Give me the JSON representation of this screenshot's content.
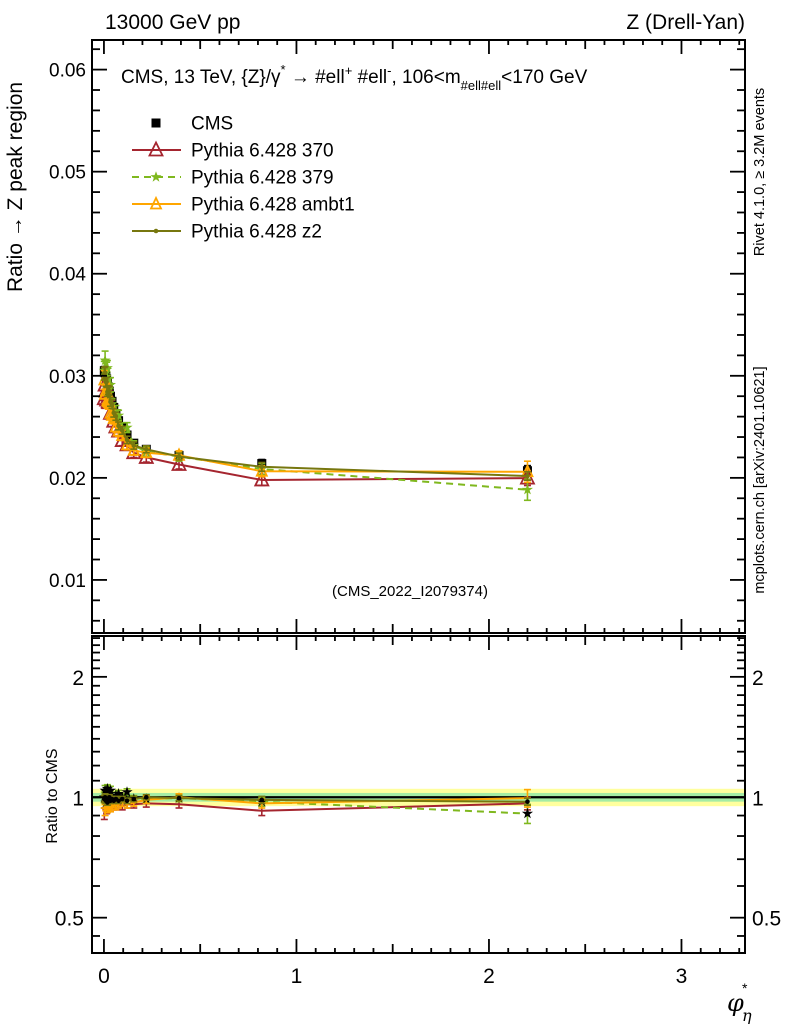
{
  "header": {
    "left": "13000 GeV pp",
    "right": "Z (Drell-Yan)"
  },
  "plot_title": {
    "p1": "CMS, 13 TeV, {Z}/γ",
    "sup1": "*",
    "p2": " → #ell",
    "sup2": "+",
    "p3": " #ell",
    "sup3": "-",
    "p4": ", 106<m",
    "sub1": "#ell#ell",
    "p5": "<170 GeV"
  },
  "side_notes": {
    "top": "Rivet 4.1.0, ≥ 3.2M events",
    "bottom": "mcplots.cern.ch [arXiv:2401.10621]"
  },
  "watermark": "(CMS_2022_I2079374)",
  "labels": {
    "y_main": "Ratio → Z peak region",
    "y_ratio": "Ratio to CMS",
    "x_phi": "φ",
    "x_sup": "*",
    "x_sub": "η"
  },
  "colors": {
    "frame": "#000000",
    "cms": "#000000",
    "py370": "#a5252f",
    "py379": "#7fb81e",
    "pyambt1": "#ffa600",
    "pyz2": "#77770f",
    "band_outer": "#ffff9e",
    "band_inner": "#a4eca4",
    "side_text": "#8e8e8e",
    "watermark": "#b4b4b4"
  },
  "legend": {
    "items": [
      {
        "id": "cms",
        "label": "CMS",
        "marker": "square",
        "color": "#000000",
        "line": "none"
      },
      {
        "id": "py370",
        "label": "Pythia 6.428 370",
        "marker": "triangle-open",
        "color": "#a5252f",
        "line": "solid"
      },
      {
        "id": "py379",
        "label": "Pythia 6.428 379",
        "marker": "star",
        "color": "#7fb81e",
        "line": "dashed"
      },
      {
        "id": "pyambt1",
        "label": "Pythia 6.428 ambt1",
        "marker": "triangle-open-small",
        "color": "#ffa600",
        "line": "solid"
      },
      {
        "id": "pyz2",
        "label": "Pythia 6.428 z2",
        "marker": "dot",
        "color": "#77770f",
        "line": "solid"
      }
    ]
  },
  "chart_data": [
    {
      "type": "line",
      "panel": "main",
      "title": "CMS, 13 TeV, {Z}/γ* → ell+ ell-, 106<m_ellell<170 GeV",
      "xlabel": "phi*_eta",
      "ylabel": "Ratio → Z peak region",
      "xlim": [
        -0.062,
        3.33
      ],
      "ylim": [
        0.0048,
        0.0629
      ],
      "grid": false,
      "x": [
        0.002,
        0.006,
        0.01,
        0.014,
        0.018,
        0.023,
        0.028,
        0.034,
        0.042,
        0.051,
        0.062,
        0.076,
        0.095,
        0.12,
        0.155,
        0.22,
        0.39,
        0.82,
        2.2
      ],
      "yticks": {
        "major": [
          0.01,
          0.02,
          0.03,
          0.04,
          0.05,
          0.06
        ],
        "labels": [
          "0.01",
          "0.02",
          "0.03",
          "0.04",
          "0.05",
          "0.06"
        ],
        "minor_step": 0.002
      },
      "xticks": {
        "major": [
          0,
          1,
          2,
          3
        ],
        "labels": [
          "0",
          "1",
          "2",
          "3"
        ],
        "medium_step": 0.5,
        "minor_step": 0.1
      },
      "series": [
        {
          "id": "cms",
          "label": "CMS",
          "marker": "square",
          "color": "#000000",
          "line": "none",
          "y": [
            0.0305,
            0.0303,
            0.03,
            0.0297,
            0.0293,
            0.0289,
            0.0285,
            0.028,
            0.0275,
            0.0269,
            0.0263,
            0.0256,
            0.0249,
            0.0242,
            0.0234,
            0.0228,
            0.0222,
            0.0214,
            0.0207
          ],
          "yerr": [
            0.0004,
            0.0003,
            0.0003,
            0.0003,
            0.0003,
            0.0003,
            0.0003,
            0.0003,
            0.0003,
            0.0003,
            0.0003,
            0.0003,
            0.0003,
            0.0003,
            0.0003,
            0.0003,
            0.0003,
            0.0004,
            0.0005
          ]
        }
      ],
      "note": "MC model values in this panel = ratio × CMS value, ratios listed in the ratio-panel chart below"
    },
    {
      "type": "line",
      "panel": "ratio",
      "ylabel": "Ratio to CMS",
      "ylog": true,
      "xlim": [
        -0.062,
        3.33
      ],
      "ylim": [
        0.408,
        2.53
      ],
      "grid": false,
      "yticks": {
        "major": [
          0.5,
          1,
          2
        ],
        "labels": [
          "0.5",
          "1",
          "2"
        ],
        "minor": [
          0.45,
          0.6,
          0.7,
          0.8,
          0.9,
          1.1,
          1.2,
          1.3,
          1.4,
          1.5,
          1.6,
          1.7,
          1.8,
          1.9,
          2.1,
          2.2,
          2.3,
          2.4,
          2.5
        ]
      },
      "reference_line": 1.0,
      "bands": {
        "outer": {
          "lo": 0.95,
          "hi": 1.05,
          "color": "#ffff9e"
        },
        "inner": {
          "lo": 0.975,
          "hi": 1.025,
          "color": "#a4eca4"
        }
      },
      "x": [
        0.002,
        0.006,
        0.01,
        0.014,
        0.018,
        0.023,
        0.028,
        0.034,
        0.042,
        0.051,
        0.062,
        0.076,
        0.095,
        0.12,
        0.155,
        0.22,
        0.39,
        0.82,
        2.2
      ],
      "series": [
        {
          "id": "py370",
          "label": "Pythia 6.428 370",
          "marker": "triangle-open",
          "color": "#a5252f",
          "line": "solid",
          "ratio": [
            0.91,
            0.96,
            0.95,
            0.93,
            0.96,
            0.95,
            0.96,
            0.94,
            0.96,
            0.95,
            0.95,
            0.96,
            0.95,
            0.96,
            0.96,
            0.965,
            0.96,
            0.925,
            0.965
          ],
          "err": [
            0.03,
            0.02,
            0.02,
            0.02,
            0.02,
            0.02,
            0.02,
            0.02,
            0.02,
            0.02,
            0.02,
            0.02,
            0.02,
            0.02,
            0.02,
            0.02,
            0.02,
            0.025,
            0.035
          ]
        },
        {
          "id": "py379",
          "label": "Pythia 6.428 379",
          "marker": "star",
          "color": "#7fb81e",
          "line": "dashed",
          "ratio": [
            1.0,
            1.04,
            0.97,
            1.03,
            1.05,
            0.98,
            1.02,
            1.04,
            0.99,
            0.97,
            1.01,
            1.02,
            1.0,
            1.03,
            0.99,
            0.99,
            0.995,
            0.975,
            0.91
          ],
          "err": [
            0.03,
            0.03,
            0.03,
            0.025,
            0.025,
            0.025,
            0.025,
            0.025,
            0.02,
            0.02,
            0.02,
            0.02,
            0.02,
            0.02,
            0.02,
            0.02,
            0.02,
            0.025,
            0.05
          ]
        },
        {
          "id": "pyambt1",
          "label": "Pythia 6.428 ambt1",
          "marker": "triangle-open-small",
          "color": "#ffa600",
          "line": "solid",
          "ratio": [
            0.97,
            0.93,
            0.95,
            0.96,
            0.94,
            0.95,
            0.96,
            0.94,
            0.95,
            0.96,
            0.95,
            0.96,
            0.97,
            0.96,
            0.97,
            0.985,
            1.0,
            0.965,
            0.995
          ],
          "err": [
            0.03,
            0.03,
            0.025,
            0.025,
            0.025,
            0.025,
            0.02,
            0.02,
            0.02,
            0.02,
            0.02,
            0.02,
            0.02,
            0.02,
            0.02,
            0.02,
            0.02,
            0.025,
            0.05
          ]
        },
        {
          "id": "pyz2",
          "label": "Pythia 6.428 z2",
          "marker": "dot",
          "color": "#77770f",
          "line": "solid",
          "ratio": [
            0.99,
            1.0,
            0.98,
            0.99,
            0.97,
            0.99,
            1.0,
            0.98,
            0.99,
            0.98,
            0.99,
            0.98,
            0.99,
            0.98,
            0.99,
            1.0,
            0.995,
            0.985,
            0.975
          ],
          "err": [
            0.02,
            0.02,
            0.015,
            0.015,
            0.015,
            0.015,
            0.015,
            0.015,
            0.015,
            0.015,
            0.015,
            0.015,
            0.015,
            0.015,
            0.015,
            0.015,
            0.015,
            0.02,
            0.02
          ]
        }
      ]
    }
  ],
  "ratio_tick_labels_right": [
    "2",
    "1",
    "0.5"
  ]
}
